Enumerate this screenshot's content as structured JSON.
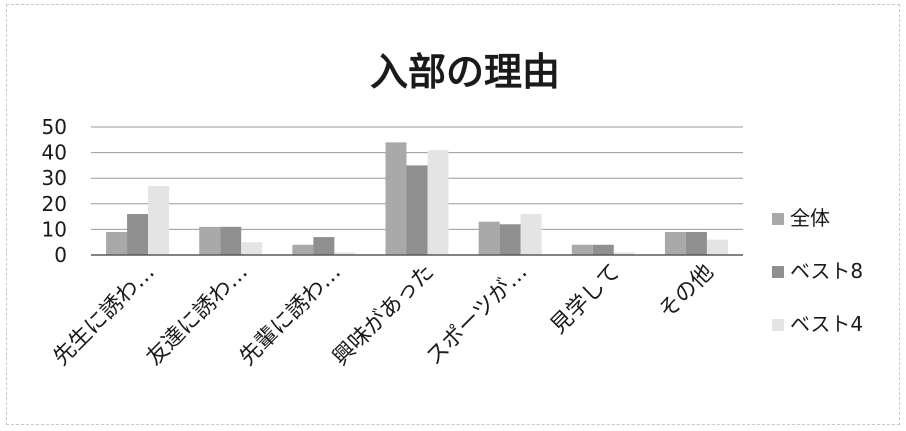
{
  "chart_data": {
    "type": "bar",
    "title": "入部の理由",
    "categories": [
      "先生に誘わ…",
      "友達に誘わ…",
      "先輩に誘わ…",
      "興味があった",
      "スポーツが…",
      "見学して",
      "その他"
    ],
    "series": [
      {
        "name": "全体",
        "values": [
          9,
          11,
          4,
          44,
          13,
          4,
          9
        ],
        "color": "#a9a9a9"
      },
      {
        "name": "ベスト8",
        "values": [
          16,
          11,
          7,
          35,
          12,
          4,
          9
        ],
        "color": "#8f8f8f"
      },
      {
        "name": "ベスト4",
        "values": [
          27,
          5,
          1,
          41,
          16,
          1,
          6
        ],
        "color": "#e4e4e4"
      }
    ],
    "ylim": [
      0,
      50
    ],
    "yticks": [
      0,
      10,
      20,
      30,
      40,
      50
    ],
    "grid": true,
    "legend": "right"
  }
}
